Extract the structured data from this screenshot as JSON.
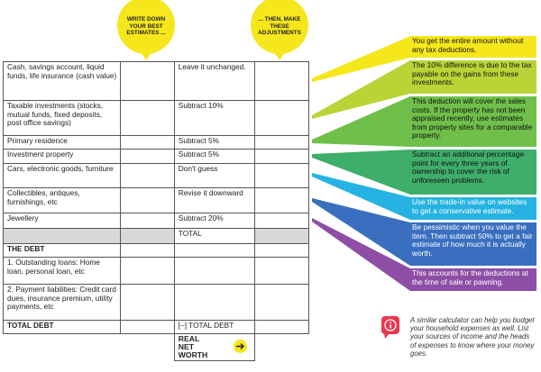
{
  "header": {
    "estimate_label": "WRITE DOWN YOUR BEST ESTIMATES ...",
    "adjust_label": "... THEN, MAKE THESE ADJUSTMENTS"
  },
  "table": {
    "rows": [
      {
        "item": "Cash, savings account, liquid funds, life insurance (cash value)",
        "adjustment": "Leave it unchanged."
      },
      {
        "item": "Taxable investments (stocks, mutual funds, fixed deposits, post office savings)",
        "adjustment": "Subtract 10%"
      },
      {
        "item": "Primary residence",
        "adjustment": "Subtract 5%"
      },
      {
        "item": "Investment property",
        "adjustment": "Subtract 5%"
      },
      {
        "item": "Cars, electronic goods, furniture",
        "adjustment": "Don't guess"
      },
      {
        "item": "Collectibles, antiques, furnishings, etc",
        "adjustment": "Revise it downward"
      },
      {
        "item": "Jewellery",
        "adjustment": "Subtract 20%"
      },
      {
        "adjustment": "TOTAL"
      },
      {
        "item": "THE DEBT"
      },
      {
        "item": "1. Outstanding loans: Home loan, personal loan, etc"
      },
      {
        "item": "2. Payment liabilities: Credit card dues, insurance premium, utility payments, etc"
      },
      {
        "item": "TOTAL DEBT",
        "adjustment": "[–] TOTAL DEBT"
      },
      {
        "adjustment": "REAL NET WORTH"
      }
    ]
  },
  "notes": [
    "You get the entire amount without any tax deductions.",
    "The 10% difference is due to the tax payable on the gains from these investments.",
    "This deduction will cover the sales costs. If the property has not been appraised recently, use estimates from property sites for a comparable property.",
    "Subtract an additional percentage point for every three years of ownership to cover the risk of unforeseen problems.",
    "Use the trade-in value on websites to get a conservative estimate.",
    "Be pessimistic when you value the item. Then subtract 50% to get a fair estimate of how much it is actually worth.",
    "This accounts for the deductions at the time of sale or pawning."
  ],
  "footer": {
    "text": "A similar calculator can help you budget your household expenses as well. List your sources of income and the heads of expenses to know where your money goes."
  }
}
